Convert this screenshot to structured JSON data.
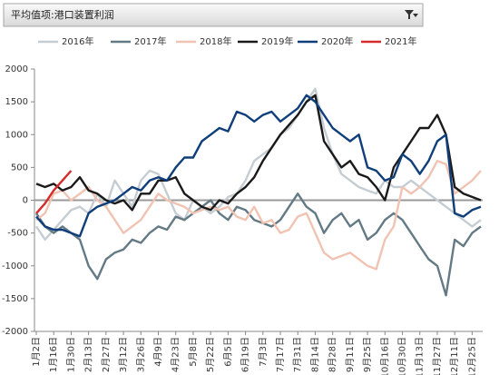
{
  "chart_data": {
    "type": "line",
    "filter_label": "平均值项:港口装置利润",
    "categories": [
      "1月2日",
      null,
      "1月16日",
      null,
      "1月30日",
      null,
      "2月13日",
      null,
      "2月27日",
      null,
      "3月12日",
      null,
      "3月26日",
      null,
      "4月9日",
      null,
      "4月23日",
      null,
      "5月8日",
      null,
      "5月22日",
      null,
      "6月5日",
      null,
      "6月19日",
      null,
      "7月3日",
      null,
      "7月17日",
      null,
      "7月31日",
      null,
      "8月14日",
      null,
      "8月28日",
      null,
      "9月11日",
      null,
      "9月25日",
      null,
      "10月16日",
      null,
      "10月30日",
      null,
      "11月13日",
      null,
      "11月27日",
      null,
      "12月11日",
      null,
      "12月25日",
      null
    ],
    "ylim": [
      -2000,
      2000
    ],
    "yticks": [
      -2000,
      -1500,
      -1000,
      -500,
      0,
      500,
      1000,
      1500,
      2000
    ],
    "zero_line": true,
    "legend": "top",
    "series": [
      {
        "name": "2016年",
        "color": "#c5cdd2",
        "values": [
          -400,
          -600,
          -450,
          -300,
          -150,
          -100,
          -200,
          100,
          -100,
          300,
          100,
          -100,
          300,
          450,
          400,
          100,
          -200,
          -300,
          0,
          -100,
          -200,
          -100,
          50,
          100,
          300,
          600,
          700,
          800,
          1000,
          1100,
          1300,
          1500,
          1700,
          1100,
          700,
          400,
          300,
          200,
          150,
          100,
          300,
          200,
          200,
          300,
          200,
          100,
          0,
          -100,
          -200,
          -300,
          -400,
          -300
        ]
      },
      {
        "name": "2017年",
        "color": "#637a85",
        "values": [
          -200,
          -400,
          -500,
          -400,
          -500,
          -600,
          -1000,
          -1200,
          -900,
          -800,
          -750,
          -600,
          -650,
          -500,
          -400,
          -450,
          -250,
          -300,
          -200,
          -100,
          0,
          -200,
          -300,
          -100,
          -150,
          -300,
          -350,
          -400,
          -300,
          -100,
          100,
          -100,
          -200,
          -500,
          -300,
          -200,
          -400,
          -300,
          -600,
          -500,
          -300,
          -200,
          -300,
          -500,
          -700,
          -900,
          -1000,
          -1450,
          -600,
          -700,
          -500,
          -400
        ]
      },
      {
        "name": "2018年",
        "color": "#f0c3b2",
        "values": [
          -300,
          -200,
          100,
          150,
          0,
          100,
          200,
          0,
          -100,
          -300,
          -500,
          -400,
          -300,
          -100,
          100,
          0,
          -50,
          -100,
          -200,
          -150,
          -100,
          -150,
          -100,
          -250,
          -300,
          -100,
          -350,
          -300,
          -500,
          -450,
          -250,
          -200,
          -500,
          -800,
          -900,
          -850,
          -800,
          -900,
          -1000,
          -1050,
          -600,
          -400,
          200,
          100,
          200,
          350,
          600,
          550,
          100,
          200,
          300,
          450
        ]
      },
      {
        "name": "2019年",
        "color": "#1a1a1a",
        "values": [
          250,
          200,
          250,
          150,
          200,
          350,
          150,
          100,
          0,
          -50,
          0,
          -150,
          100,
          100,
          300,
          300,
          350,
          100,
          0,
          -100,
          -150,
          0,
          -50,
          100,
          200,
          350,
          600,
          800,
          1000,
          1150,
          1300,
          1500,
          1600,
          900,
          700,
          500,
          600,
          400,
          350,
          200,
          0,
          500,
          700,
          900,
          1100,
          1100,
          1300,
          1000,
          200,
          100,
          50,
          0
        ]
      },
      {
        "name": "2020年",
        "color": "#0f3e7a",
        "values": [
          -250,
          -400,
          -450,
          -450,
          -500,
          -550,
          -200,
          -100,
          -50,
          0,
          100,
          200,
          150,
          300,
          350,
          300,
          500,
          650,
          650,
          900,
          1000,
          1100,
          1050,
          1350,
          1300,
          1200,
          1300,
          1350,
          1200,
          1300,
          1400,
          1600,
          1500,
          1300,
          1100,
          1000,
          900,
          1000,
          500,
          450,
          300,
          350,
          700,
          600,
          400,
          600,
          900,
          1000,
          -200,
          -250,
          -150,
          -100
        ]
      },
      {
        "name": "2021年",
        "color": "#d62b2b",
        "values": [
          -200,
          -50,
          150,
          300,
          450,
          null,
          null,
          null,
          null,
          null,
          null,
          null,
          null,
          null,
          null,
          null,
          null,
          null,
          null,
          null,
          null,
          null,
          null,
          null,
          null,
          null,
          null,
          null,
          null,
          null,
          null,
          null,
          null,
          null,
          null,
          null,
          null,
          null,
          null,
          null,
          null,
          null,
          null,
          null,
          null,
          null,
          null,
          null,
          null,
          null,
          null,
          null
        ]
      }
    ]
  }
}
